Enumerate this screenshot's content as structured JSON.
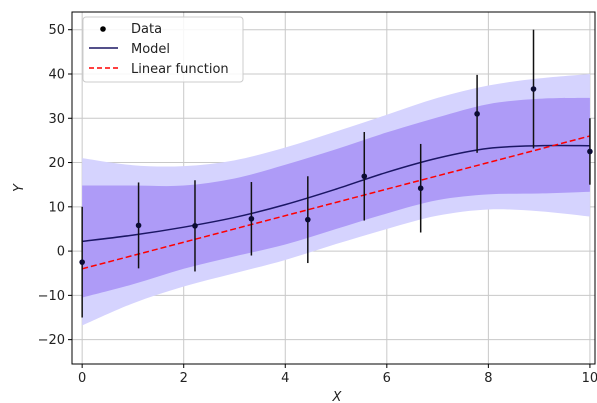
{
  "chart_data": {
    "type": "line",
    "xlabel": "X",
    "ylabel": "Y",
    "xlim": [
      -0.2,
      10.1
    ],
    "ylim": [
      -25.5,
      54
    ],
    "xticks": [
      0,
      2,
      4,
      6,
      8,
      10
    ],
    "yticks": [
      -20,
      -10,
      0,
      10,
      20,
      30,
      40,
      50
    ],
    "grid": true,
    "legend_position": "top-left",
    "legend": [
      {
        "label": "Data",
        "kind": "marker",
        "color": "#000000"
      },
      {
        "label": "Model",
        "kind": "line",
        "color": "#1b1664"
      },
      {
        "label": "Linear function",
        "kind": "dashed-line",
        "color": "#ff0000"
      }
    ],
    "data_points": {
      "x": [
        0.0,
        1.111,
        2.222,
        3.333,
        4.444,
        5.556,
        6.667,
        7.778,
        8.889,
        10.0
      ],
      "y": [
        -2.5,
        5.8,
        5.7,
        7.3,
        7.1,
        16.9,
        14.2,
        31.0,
        36.6,
        22.5
      ],
      "yerr": [
        12.5,
        9.7,
        10.3,
        8.3,
        9.8,
        10.0,
        10.0,
        8.8,
        13.4,
        7.5
      ]
    },
    "model": {
      "x": [
        0,
        1,
        2,
        3,
        4,
        5,
        6,
        7,
        8,
        9,
        10
      ],
      "y": [
        2.2,
        3.6,
        5.4,
        7.6,
        10.5,
        14.0,
        17.8,
        21.0,
        23.2,
        23.8,
        23.8
      ]
    },
    "band_inner": {
      "x": [
        0,
        1,
        2,
        3,
        4,
        5,
        6,
        7,
        8,
        9,
        10
      ],
      "lower": [
        -10.5,
        -7.5,
        -4.0,
        -1.2,
        1.5,
        5.0,
        8.5,
        11.5,
        12.8,
        13.0,
        13.4
      ],
      "upper": [
        14.8,
        14.8,
        14.8,
        16.4,
        19.5,
        23.0,
        26.8,
        30.2,
        33.2,
        34.4,
        34.6
      ]
    },
    "band_outer": {
      "x": [
        0,
        1,
        2,
        3,
        4,
        5,
        6,
        7,
        8,
        9,
        10
      ],
      "lower": [
        -16.8,
        -11.8,
        -8.0,
        -5.0,
        -2.0,
        1.6,
        5.0,
        8.0,
        9.4,
        9.0,
        7.8
      ],
      "upper": [
        21.0,
        19.4,
        19.2,
        20.5,
        23.4,
        27.0,
        30.8,
        34.6,
        37.4,
        39.0,
        40.0
      ]
    },
    "linear": {
      "x": [
        0,
        10
      ],
      "y": [
        -4.0,
        26.0
      ]
    },
    "colors": {
      "outer_band": "#d5d3fe",
      "inner_band": "#ae9bf7",
      "model": "#1b1664",
      "linear": "#ff0000",
      "points": "#0b0b33",
      "errorbar": "#111111",
      "grid": "#c8c8c8"
    }
  }
}
